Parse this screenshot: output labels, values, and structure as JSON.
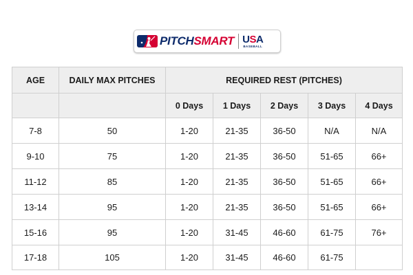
{
  "logo": {
    "pitch": "PITCH",
    "smart": "SMART",
    "usa_u": "U",
    "usa_s": "S",
    "usa_a": "A",
    "usa_sub": "BASEBALL",
    "mlb_icon": "mlb-batter-logo-icon",
    "colors": {
      "navy": "#0d2b6b",
      "red": "#d50032"
    }
  },
  "table": {
    "header_age": "AGE",
    "header_daily_max": "DAILY MAX PITCHES",
    "header_required_rest": "REQUIRED REST (PITCHES)",
    "rest_days": [
      "0 Days",
      "1 Days",
      "2 Days",
      "3 Days",
      "4 Days"
    ],
    "rows": [
      {
        "age": "7-8",
        "max": "50",
        "rest": [
          "1-20",
          "21-35",
          "36-50",
          "N/A",
          "N/A"
        ]
      },
      {
        "age": "9-10",
        "max": "75",
        "rest": [
          "1-20",
          "21-35",
          "36-50",
          "51-65",
          "66+"
        ]
      },
      {
        "age": "11-12",
        "max": "85",
        "rest": [
          "1-20",
          "21-35",
          "36-50",
          "51-65",
          "66+"
        ]
      },
      {
        "age": "13-14",
        "max": "95",
        "rest": [
          "1-20",
          "21-35",
          "36-50",
          "51-65",
          "66+"
        ]
      },
      {
        "age": "15-16",
        "max": "95",
        "rest": [
          "1-20",
          "31-45",
          "46-60",
          "61-75",
          "76+"
        ]
      },
      {
        "age": "17-18",
        "max": "105",
        "rest": [
          "1-20",
          "31-45",
          "46-60",
          "61-75",
          ""
        ]
      }
    ],
    "colors": {
      "header_bg": "#eeeeee",
      "border": "#cfcfcf"
    }
  }
}
